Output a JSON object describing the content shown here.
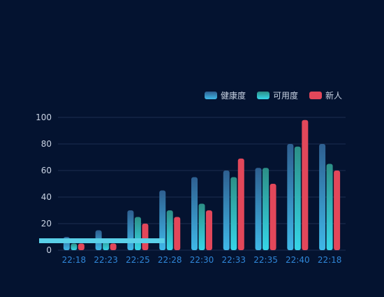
{
  "colors": {
    "background": "#041330",
    "grid": "#1b2d4f",
    "axis_label": "#c9d3e3",
    "x_tick_label": "#2f86d8",
    "legend_text": "#c9d3e3",
    "overlay_bar": "#5ad0e8"
  },
  "chart_data": {
    "type": "bar",
    "categories": [
      "22:18",
      "22:23",
      "22:25",
      "22:28",
      "22:30",
      "22:33",
      "22:35",
      "22:40",
      "22:18"
    ],
    "ylim": [
      0,
      100
    ],
    "yticks": [
      0,
      20,
      40,
      60,
      80,
      100
    ],
    "grid": true,
    "legend_position": "top-right",
    "series": [
      {
        "name": "健康度",
        "values": [
          10,
          15,
          30,
          45,
          55,
          60,
          62,
          80,
          80
        ],
        "color_top": "#2e5f90",
        "color_bottom": "#3fb8e8"
      },
      {
        "name": "可用度",
        "values": [
          5,
          8,
          25,
          30,
          35,
          55,
          62,
          78,
          65
        ],
        "color_top": "#2c8f86",
        "color_bottom": "#36d6e8"
      },
      {
        "name": "新人",
        "values": [
          5,
          5,
          20,
          25,
          30,
          69,
          50,
          98,
          60
        ],
        "color_top": "#e2475a",
        "color_bottom": "#e2475a"
      }
    ]
  },
  "overlay_bar": {
    "fraction": 0.41
  }
}
